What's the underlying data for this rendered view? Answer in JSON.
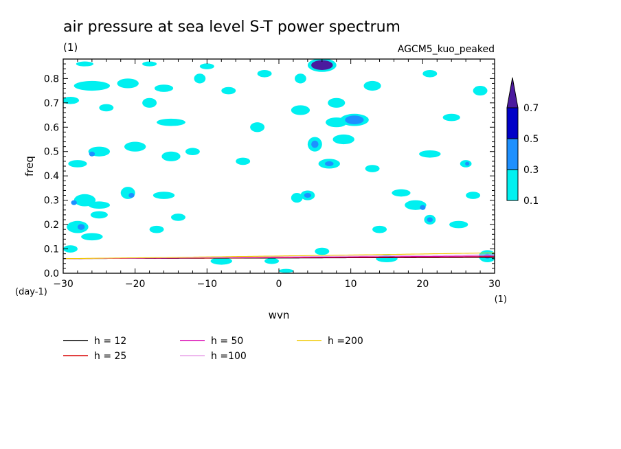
{
  "chart_data": {
    "type": "heatmap",
    "title": "air pressure at sea level S-T power spectrum",
    "subtitle_left": "(1)",
    "subtitle_right": "AGCM5_kuo_peaked",
    "xlabel": "wvn",
    "ylabel": "freq",
    "x_unit": "(1)",
    "y_unit": "(day-1)",
    "xlim": [
      -30,
      30
    ],
    "ylim": [
      0,
      0.88
    ],
    "x_ticks": [
      -30,
      -20,
      -10,
      0,
      10,
      20,
      30
    ],
    "y_ticks": [
      0.0,
      0.1,
      0.2,
      0.3,
      0.4,
      0.5,
      0.6,
      0.7,
      0.8
    ],
    "colorbar": {
      "levels": [
        0.1,
        0.3,
        0.5,
        0.7
      ],
      "labels": [
        "0.1",
        "0.3",
        "0.5",
        "0.7"
      ],
      "colors": [
        "#00f0f0",
        "#1e90ff",
        "#0000c8",
        "#4b1a9e"
      ]
    },
    "contour_patches": [
      {
        "x": -27,
        "y": 0.86,
        "rx": 1.2,
        "ry": 0.01,
        "level": 1
      },
      {
        "x": -18,
        "y": 0.86,
        "rx": 1.0,
        "ry": 0.01,
        "level": 1
      },
      {
        "x": -10,
        "y": 0.85,
        "rx": 1.0,
        "ry": 0.012,
        "level": 1
      },
      {
        "x": -2,
        "y": 0.82,
        "rx": 1.0,
        "ry": 0.015,
        "level": 1
      },
      {
        "x": 6,
        "y": 0.855,
        "rx": 1.5,
        "ry": 0.02,
        "level": 4
      },
      {
        "x": 6,
        "y": 0.855,
        "rx": 2.0,
        "ry": 0.028,
        "level": 1
      },
      {
        "x": -26,
        "y": 0.77,
        "rx": 2.5,
        "ry": 0.02,
        "level": 1
      },
      {
        "x": -21,
        "y": 0.78,
        "rx": 1.5,
        "ry": 0.02,
        "level": 1
      },
      {
        "x": -16,
        "y": 0.76,
        "rx": 1.3,
        "ry": 0.015,
        "level": 1
      },
      {
        "x": -11,
        "y": 0.8,
        "rx": 0.8,
        "ry": 0.02,
        "level": 1
      },
      {
        "x": 3,
        "y": 0.8,
        "rx": 0.8,
        "ry": 0.02,
        "level": 1
      },
      {
        "x": 13,
        "y": 0.77,
        "rx": 1.2,
        "ry": 0.02,
        "level": 1
      },
      {
        "x": 21,
        "y": 0.82,
        "rx": 1.0,
        "ry": 0.015,
        "level": 1
      },
      {
        "x": 28,
        "y": 0.75,
        "rx": 1.0,
        "ry": 0.02,
        "level": 1
      },
      {
        "x": -29,
        "y": 0.71,
        "rx": 1.2,
        "ry": 0.015,
        "level": 1
      },
      {
        "x": -24,
        "y": 0.68,
        "rx": 1.0,
        "ry": 0.015,
        "level": 1
      },
      {
        "x": -18,
        "y": 0.7,
        "rx": 1.0,
        "ry": 0.02,
        "level": 1
      },
      {
        "x": -7,
        "y": 0.75,
        "rx": 1.0,
        "ry": 0.015,
        "level": 1
      },
      {
        "x": 3,
        "y": 0.67,
        "rx": 1.3,
        "ry": 0.02,
        "level": 1
      },
      {
        "x": 8,
        "y": 0.7,
        "rx": 1.2,
        "ry": 0.02,
        "level": 1
      },
      {
        "x": -15,
        "y": 0.62,
        "rx": 2.0,
        "ry": 0.015,
        "level": 1
      },
      {
        "x": -3,
        "y": 0.6,
        "rx": 1.0,
        "ry": 0.02,
        "level": 1
      },
      {
        "x": 8,
        "y": 0.62,
        "rx": 1.5,
        "ry": 0.02,
        "level": 1
      },
      {
        "x": 10.5,
        "y": 0.63,
        "rx": 1.3,
        "ry": 0.018,
        "level": 2
      },
      {
        "x": 10.5,
        "y": 0.63,
        "rx": 2.0,
        "ry": 0.025,
        "level": 1
      },
      {
        "x": 24,
        "y": 0.64,
        "rx": 1.2,
        "ry": 0.015,
        "level": 1
      },
      {
        "x": -25,
        "y": 0.5,
        "rx": 1.5,
        "ry": 0.02,
        "level": 1
      },
      {
        "x": -26,
        "y": 0.49,
        "rx": 0.4,
        "ry": 0.01,
        "level": 2
      },
      {
        "x": -20,
        "y": 0.52,
        "rx": 1.5,
        "ry": 0.02,
        "level": 1
      },
      {
        "x": -15,
        "y": 0.48,
        "rx": 1.3,
        "ry": 0.02,
        "level": 1
      },
      {
        "x": -12,
        "y": 0.5,
        "rx": 1.0,
        "ry": 0.015,
        "level": 1
      },
      {
        "x": 5,
        "y": 0.53,
        "rx": 1.0,
        "ry": 0.03,
        "level": 1
      },
      {
        "x": 5,
        "y": 0.53,
        "rx": 0.5,
        "ry": 0.015,
        "level": 2
      },
      {
        "x": 9,
        "y": 0.55,
        "rx": 1.5,
        "ry": 0.02,
        "level": 1
      },
      {
        "x": 21,
        "y": 0.49,
        "rx": 1.5,
        "ry": 0.015,
        "level": 1
      },
      {
        "x": 26,
        "y": 0.45,
        "rx": 0.8,
        "ry": 0.015,
        "level": 1
      },
      {
        "x": 26.2,
        "y": 0.45,
        "rx": 0.3,
        "ry": 0.008,
        "level": 2
      },
      {
        "x": -28,
        "y": 0.45,
        "rx": 1.3,
        "ry": 0.015,
        "level": 1
      },
      {
        "x": -5,
        "y": 0.46,
        "rx": 1.0,
        "ry": 0.015,
        "level": 1
      },
      {
        "x": 7,
        "y": 0.45,
        "rx": 1.5,
        "ry": 0.02,
        "level": 1
      },
      {
        "x": 7,
        "y": 0.45,
        "rx": 0.6,
        "ry": 0.01,
        "level": 2
      },
      {
        "x": 13,
        "y": 0.43,
        "rx": 1.0,
        "ry": 0.015,
        "level": 1
      },
      {
        "x": -27,
        "y": 0.3,
        "rx": 1.5,
        "ry": 0.025,
        "level": 1
      },
      {
        "x": -28.5,
        "y": 0.29,
        "rx": 0.4,
        "ry": 0.01,
        "level": 2
      },
      {
        "x": -25,
        "y": 0.28,
        "rx": 1.5,
        "ry": 0.015,
        "level": 1
      },
      {
        "x": -21,
        "y": 0.33,
        "rx": 1.0,
        "ry": 0.025,
        "level": 1
      },
      {
        "x": -20.5,
        "y": 0.32,
        "rx": 0.4,
        "ry": 0.01,
        "level": 2
      },
      {
        "x": -25,
        "y": 0.24,
        "rx": 1.2,
        "ry": 0.015,
        "level": 1
      },
      {
        "x": -16,
        "y": 0.32,
        "rx": 1.5,
        "ry": 0.015,
        "level": 1
      },
      {
        "x": 2.5,
        "y": 0.31,
        "rx": 0.8,
        "ry": 0.02,
        "level": 1
      },
      {
        "x": 4,
        "y": 0.32,
        "rx": 1.0,
        "ry": 0.02,
        "level": 1
      },
      {
        "x": 4,
        "y": 0.32,
        "rx": 0.5,
        "ry": 0.01,
        "level": 2
      },
      {
        "x": 19,
        "y": 0.28,
        "rx": 1.5,
        "ry": 0.02,
        "level": 1
      },
      {
        "x": 20,
        "y": 0.27,
        "rx": 0.4,
        "ry": 0.01,
        "level": 2
      },
      {
        "x": 21,
        "y": 0.22,
        "rx": 0.8,
        "ry": 0.02,
        "level": 1
      },
      {
        "x": 21,
        "y": 0.22,
        "rx": 0.4,
        "ry": 0.01,
        "level": 2
      },
      {
        "x": 17,
        "y": 0.33,
        "rx": 1.3,
        "ry": 0.015,
        "level": 1
      },
      {
        "x": 27,
        "y": 0.32,
        "rx": 1.0,
        "ry": 0.015,
        "level": 1
      },
      {
        "x": -28,
        "y": 0.19,
        "rx": 1.5,
        "ry": 0.025,
        "level": 1
      },
      {
        "x": -27.5,
        "y": 0.19,
        "rx": 0.5,
        "ry": 0.012,
        "level": 2
      },
      {
        "x": -26,
        "y": 0.15,
        "rx": 1.5,
        "ry": 0.015,
        "level": 1
      },
      {
        "x": -17,
        "y": 0.18,
        "rx": 1.0,
        "ry": 0.015,
        "level": 1
      },
      {
        "x": -14,
        "y": 0.23,
        "rx": 1.0,
        "ry": 0.015,
        "level": 1
      },
      {
        "x": 14,
        "y": 0.18,
        "rx": 1.0,
        "ry": 0.015,
        "level": 1
      },
      {
        "x": 25,
        "y": 0.2,
        "rx": 1.3,
        "ry": 0.015,
        "level": 1
      },
      {
        "x": -29,
        "y": 0.1,
        "rx": 1.0,
        "ry": 0.015,
        "level": 1
      },
      {
        "x": -8,
        "y": 0.05,
        "rx": 1.5,
        "ry": 0.015,
        "level": 1
      },
      {
        "x": 6,
        "y": 0.09,
        "rx": 1.0,
        "ry": 0.015,
        "level": 1
      },
      {
        "x": 15,
        "y": 0.06,
        "rx": 1.5,
        "ry": 0.015,
        "level": 1
      },
      {
        "x": 29,
        "y": 0.07,
        "rx": 1.2,
        "ry": 0.025,
        "level": 1
      },
      {
        "x": 29,
        "y": 0.07,
        "rx": 0.5,
        "ry": 0.01,
        "level": 2
      },
      {
        "x": -1,
        "y": 0.05,
        "rx": 1.0,
        "ry": 0.012,
        "level": 1
      },
      {
        "x": 1,
        "y": 0.01,
        "rx": 1.0,
        "ry": 0.008,
        "level": 1
      }
    ],
    "dispersion_curves": [
      {
        "name": "h = 12",
        "color": "#000000",
        "h": 12
      },
      {
        "name": "h = 25",
        "color": "#d80000",
        "h": 25
      },
      {
        "name": "h = 50",
        "color": "#d800b0",
        "h": 50
      },
      {
        "name": "h =100",
        "color": "#e8a0e8",
        "h": 100
      },
      {
        "name": "h =200",
        "color": "#f0c800",
        "h": 200
      }
    ]
  }
}
